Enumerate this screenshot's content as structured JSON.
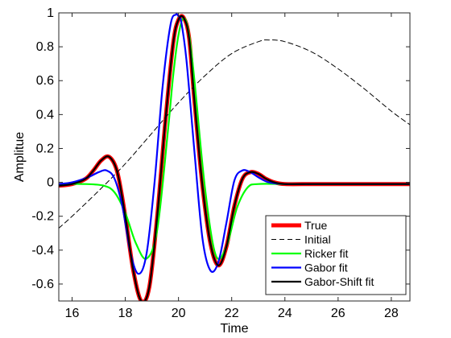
{
  "chart_data": {
    "type": "line",
    "xlabel": "Time",
    "ylabel": "Amplitue",
    "xlim": [
      15.5,
      28.7
    ],
    "ylim": [
      -0.7,
      1.0
    ],
    "xticks": [
      "16",
      "18",
      "20",
      "22",
      "24",
      "26",
      "28"
    ],
    "yticks": [
      "-0.6",
      "-0.4",
      "-0.2",
      "0",
      "0.2",
      "0.4",
      "0.6",
      "0.8",
      "1"
    ],
    "grid": false,
    "legend_position": "bottom-right",
    "series": [
      {
        "name": "True",
        "color": "#ff0000",
        "style": "solid-thick",
        "x": [
          15.5,
          16.0,
          16.5,
          16.8,
          17.1,
          17.4,
          17.7,
          18.0,
          18.3,
          18.6,
          18.9,
          19.2,
          19.5,
          19.8,
          20.0,
          20.2,
          20.4,
          20.6,
          20.9,
          21.2,
          21.5,
          21.8,
          22.1,
          22.4,
          22.7,
          23.0,
          23.3,
          23.6,
          24.0,
          25.0,
          26.0,
          27.0,
          28.0,
          28.7
        ],
        "y": [
          -0.02,
          -0.01,
          0.02,
          0.07,
          0.13,
          0.15,
          0.06,
          -0.2,
          -0.52,
          -0.7,
          -0.62,
          -0.2,
          0.35,
          0.82,
          0.96,
          0.97,
          0.85,
          0.48,
          -0.02,
          -0.36,
          -0.49,
          -0.38,
          -0.14,
          0.02,
          0.06,
          0.05,
          0.02,
          0.0,
          -0.01,
          -0.01,
          -0.01,
          -0.01,
          -0.01,
          -0.01
        ]
      },
      {
        "name": "Initial",
        "color": "#000000",
        "style": "dashed",
        "x": [
          15.5,
          16.0,
          17.0,
          18.0,
          19.0,
          20.0,
          21.0,
          22.0,
          23.0,
          23.4,
          24.0,
          25.0,
          26.0,
          27.0,
          28.0,
          28.7
        ],
        "y": [
          -0.27,
          -0.2,
          -0.05,
          0.11,
          0.29,
          0.47,
          0.63,
          0.76,
          0.83,
          0.84,
          0.83,
          0.77,
          0.67,
          0.55,
          0.42,
          0.34
        ]
      },
      {
        "name": "Ricker fit",
        "color": "#00ff00",
        "style": "solid",
        "x": [
          15.5,
          16.5,
          17.2,
          17.6,
          18.0,
          18.4,
          18.8,
          19.2,
          19.6,
          19.8,
          20.0,
          20.2,
          20.4,
          20.6,
          21.0,
          21.4,
          21.8,
          22.2,
          22.6,
          23.0,
          24.0,
          25.0,
          26.0,
          27.0,
          28.0,
          28.7
        ],
        "y": [
          -0.01,
          -0.01,
          -0.02,
          -0.06,
          -0.18,
          -0.36,
          -0.45,
          -0.28,
          0.3,
          0.63,
          0.87,
          0.97,
          0.87,
          0.6,
          -0.04,
          -0.43,
          -0.38,
          -0.15,
          -0.03,
          -0.01,
          -0.01,
          -0.01,
          -0.01,
          -0.01,
          -0.01,
          -0.01
        ]
      },
      {
        "name": "Gabor fit",
        "color": "#0000ff",
        "style": "solid",
        "x": [
          15.5,
          16.0,
          16.6,
          17.0,
          17.3,
          17.6,
          17.9,
          18.2,
          18.5,
          18.8,
          19.1,
          19.4,
          19.7,
          19.9,
          20.0,
          20.1,
          20.3,
          20.6,
          20.9,
          21.2,
          21.5,
          21.8,
          22.1,
          22.4,
          22.7,
          23.0,
          23.4,
          24.0,
          25.0,
          26.0,
          27.0,
          28.0,
          28.7
        ],
        "y": [
          -0.01,
          0.0,
          0.03,
          0.06,
          0.07,
          0.02,
          -0.15,
          -0.42,
          -0.54,
          -0.42,
          0.0,
          0.56,
          0.93,
          0.99,
          0.98,
          0.95,
          0.72,
          0.18,
          -0.33,
          -0.52,
          -0.47,
          -0.24,
          0.01,
          0.07,
          0.06,
          0.03,
          0.0,
          -0.01,
          -0.01,
          -0.01,
          -0.01,
          -0.01,
          -0.01
        ]
      },
      {
        "name": "Gabor-Shift fit",
        "color": "#000000",
        "style": "solid",
        "x": [
          15.5,
          16.0,
          16.5,
          16.8,
          17.1,
          17.4,
          17.7,
          18.0,
          18.3,
          18.6,
          18.9,
          19.2,
          19.5,
          19.8,
          20.0,
          20.2,
          20.4,
          20.6,
          20.9,
          21.2,
          21.5,
          21.8,
          22.1,
          22.4,
          22.7,
          23.0,
          23.3,
          23.6,
          24.0,
          25.0,
          26.0,
          27.0,
          28.0,
          28.7
        ],
        "y": [
          -0.02,
          -0.01,
          0.02,
          0.07,
          0.13,
          0.15,
          0.06,
          -0.2,
          -0.52,
          -0.7,
          -0.62,
          -0.2,
          0.35,
          0.82,
          0.96,
          0.97,
          0.85,
          0.48,
          -0.02,
          -0.36,
          -0.49,
          -0.38,
          -0.14,
          0.02,
          0.06,
          0.05,
          0.02,
          0.0,
          -0.01,
          -0.01,
          -0.01,
          -0.01,
          -0.01,
          -0.01
        ]
      }
    ]
  }
}
